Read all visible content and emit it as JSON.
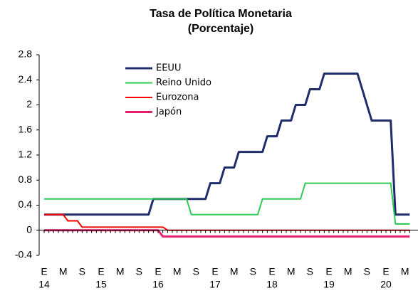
{
  "chart_data": {
    "type": "line",
    "title": "Tasa de Política Monetaria",
    "subtitle": "(Porcentaje)",
    "categories": [
      "E",
      null,
      null,
      null,
      "M",
      null,
      null,
      null,
      "S",
      null,
      null,
      null,
      "E",
      null,
      null,
      null,
      "M",
      null,
      null,
      null,
      "S",
      null,
      null,
      null,
      "E",
      null,
      null,
      null,
      "M",
      null,
      null,
      null,
      "S",
      null,
      null,
      null,
      "E",
      null,
      null,
      null,
      "M",
      null,
      null,
      null,
      "S",
      null,
      null,
      null,
      "E",
      null,
      null,
      null,
      "M",
      null,
      null,
      null,
      "S",
      null,
      null,
      null,
      "E",
      null,
      null,
      null,
      "M",
      null,
      null,
      null,
      "S",
      null,
      null,
      null,
      "E",
      null,
      null,
      null,
      "M",
      null
    ],
    "year_labels": [
      "14",
      "15",
      "16",
      "17",
      "18",
      "19",
      "20"
    ],
    "ylim": [
      -0.4,
      2.8
    ],
    "yticks": [
      -0.4,
      0.0,
      0.4,
      0.8,
      1.2,
      1.6,
      2.0,
      2.4,
      2.8
    ],
    "series": [
      {
        "name": "EEUU",
        "color": "#1f2d6b",
        "width": 3,
        "values": [
          0.25,
          0.25,
          0.25,
          0.25,
          0.25,
          0.25,
          0.25,
          0.25,
          0.25,
          0.25,
          0.25,
          0.25,
          0.25,
          0.25,
          0.25,
          0.25,
          0.25,
          0.25,
          0.25,
          0.25,
          0.25,
          0.25,
          0.25,
          0.5,
          0.5,
          0.5,
          0.5,
          0.5,
          0.5,
          0.5,
          0.5,
          0.5,
          0.5,
          0.5,
          0.5,
          0.75,
          0.75,
          0.75,
          1.0,
          1.0,
          1.0,
          1.25,
          1.25,
          1.25,
          1.25,
          1.25,
          1.25,
          1.5,
          1.5,
          1.5,
          1.75,
          1.75,
          1.75,
          2.0,
          2.0,
          2.0,
          2.25,
          2.25,
          2.25,
          2.5,
          2.5,
          2.5,
          2.5,
          2.5,
          2.5,
          2.5,
          2.5,
          2.25,
          2.0,
          1.75,
          1.75,
          1.75,
          1.75,
          1.75,
          0.25,
          0.25,
          0.25,
          0.25
        ]
      },
      {
        "name": "Reino Unido",
        "color": "#2ecc55",
        "width": 2,
        "values": [
          0.5,
          0.5,
          0.5,
          0.5,
          0.5,
          0.5,
          0.5,
          0.5,
          0.5,
          0.5,
          0.5,
          0.5,
          0.5,
          0.5,
          0.5,
          0.5,
          0.5,
          0.5,
          0.5,
          0.5,
          0.5,
          0.5,
          0.5,
          0.5,
          0.5,
          0.5,
          0.5,
          0.5,
          0.5,
          0.5,
          0.5,
          0.25,
          0.25,
          0.25,
          0.25,
          0.25,
          0.25,
          0.25,
          0.25,
          0.25,
          0.25,
          0.25,
          0.25,
          0.25,
          0.25,
          0.25,
          0.5,
          0.5,
          0.5,
          0.5,
          0.5,
          0.5,
          0.5,
          0.5,
          0.5,
          0.75,
          0.75,
          0.75,
          0.75,
          0.75,
          0.75,
          0.75,
          0.75,
          0.75,
          0.75,
          0.75,
          0.75,
          0.75,
          0.75,
          0.75,
          0.75,
          0.75,
          0.75,
          0.75,
          0.1,
          0.1,
          0.1,
          0.1
        ]
      },
      {
        "name": "Eurozona",
        "color": "#ff0000",
        "width": 2,
        "values": [
          0.25,
          0.25,
          0.25,
          0.25,
          0.25,
          0.15,
          0.15,
          0.15,
          0.05,
          0.05,
          0.05,
          0.05,
          0.05,
          0.05,
          0.05,
          0.05,
          0.05,
          0.05,
          0.05,
          0.05,
          0.05,
          0.05,
          0.05,
          0.05,
          0.05,
          0.05,
          0,
          0,
          0,
          0,
          0,
          0,
          0,
          0,
          0,
          0,
          0,
          0,
          0,
          0,
          0,
          0,
          0,
          0,
          0,
          0,
          0,
          0,
          0,
          0,
          0,
          0,
          0,
          0,
          0,
          0,
          0,
          0,
          0,
          0,
          0,
          0,
          0,
          0,
          0,
          0,
          0,
          0,
          0,
          0,
          0,
          0,
          0,
          0,
          0,
          0,
          0,
          0
        ]
      },
      {
        "name": "Japón",
        "color": "#e6206e",
        "width": 3,
        "values": [
          0,
          0,
          0,
          0,
          0,
          0,
          0,
          0,
          0,
          0,
          0,
          0,
          0,
          0,
          0,
          0,
          0,
          0,
          0,
          0,
          0,
          0,
          0,
          0,
          0,
          -0.1,
          -0.1,
          -0.1,
          -0.1,
          -0.1,
          -0.1,
          -0.1,
          -0.1,
          -0.1,
          -0.1,
          -0.1,
          -0.1,
          -0.1,
          -0.1,
          -0.1,
          -0.1,
          -0.1,
          -0.1,
          -0.1,
          -0.1,
          -0.1,
          -0.1,
          -0.1,
          -0.1,
          -0.1,
          -0.1,
          -0.1,
          -0.1,
          -0.1,
          -0.1,
          -0.1,
          -0.1,
          -0.1,
          -0.1,
          -0.1,
          -0.1,
          -0.1,
          -0.1,
          -0.1,
          -0.1,
          -0.1,
          -0.1,
          -0.1,
          -0.1,
          -0.1,
          -0.1,
          -0.1,
          -0.1,
          -0.1,
          -0.1,
          -0.1,
          -0.1,
          -0.1
        ]
      }
    ]
  }
}
